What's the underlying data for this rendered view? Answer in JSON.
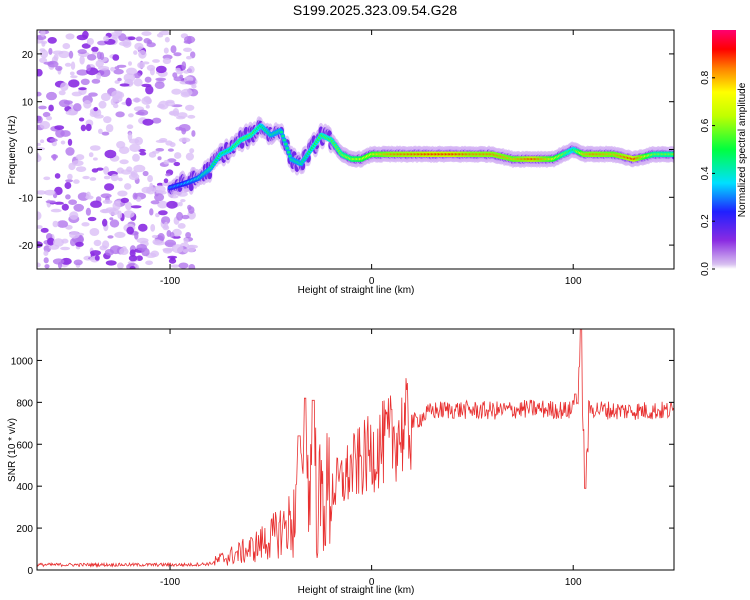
{
  "chart_data": [
    {
      "type": "heatmap",
      "title": "S199.2025.323.09.54.G28",
      "xlabel": "Height of straight line (km)",
      "ylabel": "Frequency (Hz)",
      "xlim": [
        -166,
        150
      ],
      "ylim": [
        -25,
        25
      ],
      "xticks": [
        -100,
        0,
        100
      ],
      "yticks": [
        -20,
        -10,
        0,
        10,
        20
      ],
      "xtick_labels": [
        "-100",
        "0",
        "100"
      ],
      "ytick_labels": [
        "-20",
        "-10",
        "0",
        "10",
        "20"
      ],
      "colorbar": {
        "label": "Normalized spectral amplitude",
        "range": [
          0,
          1
        ],
        "ticks": [
          0.0,
          0.2,
          0.4,
          0.6,
          0.8
        ],
        "tick_labels": [
          "0.0",
          "0.2",
          "0.4",
          "0.6",
          "0.8"
        ],
        "colormap": "rainbow (purple-blue-cyan-green-yellow-red-magenta)"
      },
      "noise_region_x_max": -88,
      "ridge": {
        "x": [
          -100,
          -92,
          -86,
          -80,
          -75,
          -70,
          -65,
          -60,
          -55,
          -50,
          -45,
          -40,
          -35,
          -30,
          -25,
          -20,
          -15,
          -10,
          -5,
          0,
          10,
          20,
          30,
          40,
          50,
          60,
          70,
          80,
          90,
          95,
          100,
          105,
          110,
          120,
          130,
          140,
          150
        ],
        "freq": [
          -8,
          -7,
          -6,
          -4,
          -1,
          0,
          2,
          3,
          5,
          3,
          4,
          -2,
          -3,
          0,
          3,
          2,
          -1,
          -2,
          -2,
          -1,
          -1,
          -1,
          -1,
          -1,
          -1,
          -1,
          -2,
          -2,
          -2,
          -1,
          0,
          -1,
          -1,
          -1,
          -2,
          -1,
          -1
        ],
        "amplitude": [
          0.3,
          0.35,
          0.4,
          0.45,
          0.5,
          0.5,
          0.55,
          0.55,
          0.5,
          0.45,
          0.45,
          0.45,
          0.45,
          0.5,
          0.55,
          0.55,
          0.6,
          0.65,
          0.7,
          0.75,
          0.85,
          0.88,
          0.92,
          0.92,
          0.85,
          0.85,
          0.8,
          0.9,
          0.75,
          0.6,
          0.5,
          0.8,
          0.85,
          0.8,
          0.92,
          0.6,
          0.6
        ]
      }
    },
    {
      "type": "line",
      "title": "",
      "xlabel": "Height of straight line (km)",
      "ylabel": "SNR (10 * v/v)",
      "xlim": [
        -166,
        150
      ],
      "ylim": [
        0,
        1150
      ],
      "xticks": [
        -100,
        0,
        100
      ],
      "yticks": [
        0,
        200,
        400,
        600,
        800,
        1000
      ],
      "xtick_labels": [
        "-100",
        "0",
        "100"
      ],
      "ytick_labels": [
        "0",
        "200",
        "400",
        "600",
        "800",
        "1000"
      ],
      "color": "#e83030",
      "series": [
        {
          "name": "SNR",
          "trend_x": [
            -166,
            -90,
            -80,
            -75,
            -60,
            -50,
            -40,
            -35,
            -30,
            -25,
            -20,
            -15,
            -10,
            -5,
            0,
            10,
            20,
            30,
            40,
            60,
            80,
            100,
            104,
            106,
            110,
            120,
            150
          ],
          "trend_y": [
            25,
            25,
            30,
            50,
            100,
            150,
            230,
            270,
            300,
            330,
            380,
            420,
            480,
            520,
            560,
            630,
            700,
            760,
            765,
            760,
            770,
            760,
            750,
            760,
            770,
            760,
            760
          ],
          "spikes": [
            {
              "x": -33,
              "y": 820
            },
            {
              "x": -29,
              "y": 810
            },
            {
              "x": -36,
              "y": 640
            },
            {
              "x": 104,
              "y": 1150
            },
            {
              "x": 106,
              "y": 390
            },
            {
              "x": 101,
              "y": 840
            }
          ]
        }
      ]
    }
  ]
}
